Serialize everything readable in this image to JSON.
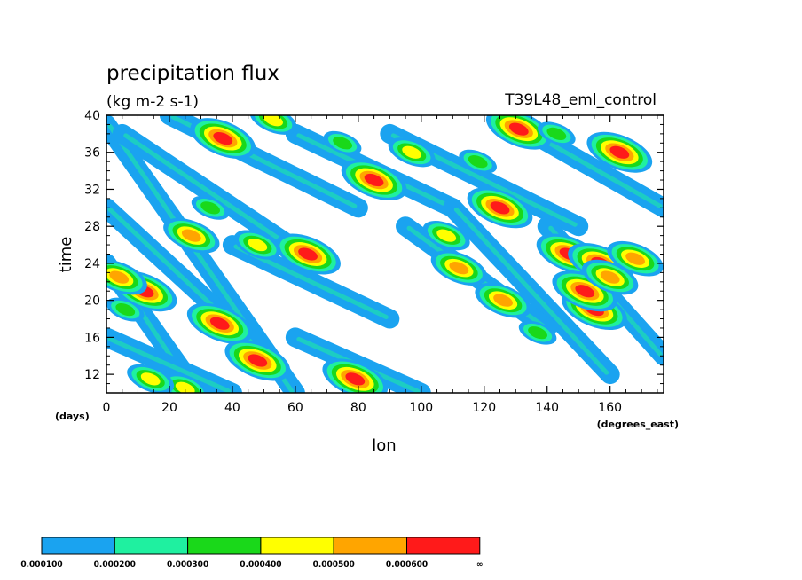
{
  "chart_data": {
    "type": "heatmap",
    "title": "precipitation flux",
    "units": "(kg m-2 s-1)",
    "run_label": "T39L48_eml_control",
    "xlabel": "lon",
    "xunits": "(degrees_east)",
    "ylabel": "time",
    "yunits": "(days)",
    "xlim": [
      0,
      177
    ],
    "ylim": [
      10,
      40
    ],
    "xticks": [
      0,
      20,
      40,
      60,
      80,
      100,
      120,
      140,
      160
    ],
    "yticks": [
      12,
      16,
      20,
      24,
      28,
      32,
      36,
      40
    ],
    "colorbar": {
      "levels": [
        "0.000100",
        "0.000200",
        "0.000300",
        "0.000400",
        "0.000500",
        "0.000600",
        "∞"
      ],
      "colors": [
        "#1aa3f0",
        "#1ff0a0",
        "#1ad81a",
        "#ffff00",
        "#ffa500",
        "#ff1a1a"
      ]
    },
    "bands": [
      {
        "x": [
          0,
          60
        ],
        "y": [
          39,
          10
        ]
      },
      {
        "x": [
          0,
          48
        ],
        "y": [
          30,
          15
        ]
      },
      {
        "x": [
          5,
          58
        ],
        "y": [
          38,
          26
        ]
      },
      {
        "x": [
          20,
          80
        ],
        "y": [
          40,
          30
        ]
      },
      {
        "x": [
          60,
          110
        ],
        "y": [
          38,
          30
        ]
      },
      {
        "x": [
          90,
          150
        ],
        "y": [
          38,
          28
        ]
      },
      {
        "x": [
          0,
          25
        ],
        "y": [
          24,
          12
        ]
      },
      {
        "x": [
          0,
          40
        ],
        "y": [
          16,
          10
        ]
      },
      {
        "x": [
          110,
          160
        ],
        "y": [
          30,
          12
        ]
      },
      {
        "x": [
          125,
          177
        ],
        "y": [
          40,
          30
        ]
      },
      {
        "x": [
          140,
          177
        ],
        "y": [
          28,
          14
        ]
      },
      {
        "x": [
          60,
          100
        ],
        "y": [
          16,
          10
        ]
      },
      {
        "x": [
          95,
          140
        ],
        "y": [
          28,
          17
        ]
      },
      {
        "x": [
          40,
          90
        ],
        "y": [
          26,
          18
        ]
      }
    ],
    "blobs": [
      {
        "x": 37,
        "y": 37.5,
        "level": 6
      },
      {
        "x": 64,
        "y": 25,
        "level": 6
      },
      {
        "x": 85,
        "y": 33,
        "level": 6
      },
      {
        "x": 125,
        "y": 30,
        "level": 6
      },
      {
        "x": 131,
        "y": 38.5,
        "level": 6
      },
      {
        "x": 147,
        "y": 25,
        "level": 6
      },
      {
        "x": 157,
        "y": 24,
        "level": 6
      },
      {
        "x": 155,
        "y": 19,
        "level": 6
      },
      {
        "x": 152,
        "y": 21,
        "level": 6
      },
      {
        "x": 163,
        "y": 36,
        "level": 6
      },
      {
        "x": 36,
        "y": 17.5,
        "level": 6
      },
      {
        "x": 48,
        "y": 13.5,
        "level": 6
      },
      {
        "x": 79,
        "y": 11.5,
        "level": 6
      },
      {
        "x": 12,
        "y": 21,
        "level": 6
      },
      {
        "x": 27,
        "y": 27,
        "level": 5
      },
      {
        "x": 4,
        "y": 22.5,
        "level": 5
      },
      {
        "x": 112,
        "y": 23.5,
        "level": 5
      },
      {
        "x": 126,
        "y": 20,
        "level": 5
      },
      {
        "x": 168,
        "y": 24.5,
        "level": 5
      },
      {
        "x": 160,
        "y": 22.5,
        "level": 5
      },
      {
        "x": 53,
        "y": 39.5,
        "level": 4
      },
      {
        "x": 108,
        "y": 27,
        "level": 4
      },
      {
        "x": 25,
        "y": 10.5,
        "level": 4
      },
      {
        "x": 14,
        "y": 11.5,
        "level": 4
      },
      {
        "x": 48,
        "y": 26,
        "level": 4
      },
      {
        "x": 97,
        "y": 36,
        "level": 4
      },
      {
        "x": 137,
        "y": 16.5,
        "level": 3
      },
      {
        "x": 6,
        "y": 19,
        "level": 3
      },
      {
        "x": 33,
        "y": 30,
        "level": 3
      },
      {
        "x": 75,
        "y": 37,
        "level": 3
      },
      {
        "x": 118,
        "y": 35,
        "level": 3
      },
      {
        "x": 143,
        "y": 38,
        "level": 3
      }
    ]
  }
}
